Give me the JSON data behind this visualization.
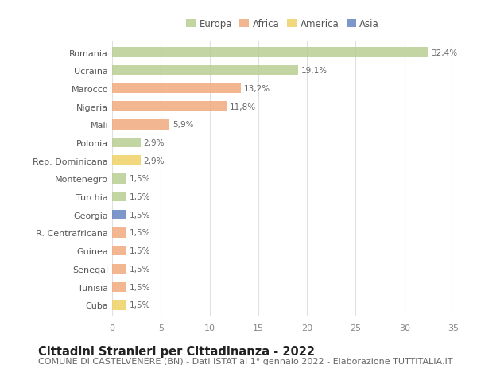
{
  "title": "Cittadini Stranieri per Cittadinanza - 2022",
  "subtitle": "COMUNE DI CASTELVENERE (BN) - Dati ISTAT al 1° gennaio 2022 - Elaborazione TUTTITALIA.IT",
  "countries": [
    "Romania",
    "Ucraina",
    "Marocco",
    "Nigeria",
    "Mali",
    "Polonia",
    "Rep. Dominicana",
    "Montenegro",
    "Turchia",
    "Georgia",
    "R. Centrafricana",
    "Guinea",
    "Senegal",
    "Tunisia",
    "Cuba"
  ],
  "values": [
    32.4,
    19.1,
    13.2,
    11.8,
    5.9,
    2.9,
    2.9,
    1.5,
    1.5,
    1.5,
    1.5,
    1.5,
    1.5,
    1.5,
    1.5
  ],
  "labels": [
    "32,4%",
    "19,1%",
    "13,2%",
    "11,8%",
    "5,9%",
    "2,9%",
    "2,9%",
    "1,5%",
    "1,5%",
    "1,5%",
    "1,5%",
    "1,5%",
    "1,5%",
    "1,5%",
    "1,5%"
  ],
  "continents": [
    "Europa",
    "Europa",
    "Africa",
    "Africa",
    "Africa",
    "Europa",
    "America",
    "Europa",
    "Europa",
    "Asia",
    "Africa",
    "Africa",
    "Africa",
    "Africa",
    "America"
  ],
  "colors": {
    "Europa": "#b5cc8e",
    "Africa": "#f0a878",
    "America": "#f0d060",
    "Asia": "#6080c0"
  },
  "legend_labels": [
    "Europa",
    "Africa",
    "America",
    "Asia"
  ],
  "legend_colors": [
    "#b5cc8e",
    "#f0a878",
    "#f0d060",
    "#6080c0"
  ],
  "xlim": [
    0,
    35
  ],
  "xticks": [
    0,
    5,
    10,
    15,
    20,
    25,
    30,
    35
  ],
  "background_color": "#ffffff",
  "grid_color": "#e0e0e0",
  "bar_height": 0.55,
  "title_fontsize": 10.5,
  "subtitle_fontsize": 8,
  "label_fontsize": 7.5,
  "tick_fontsize": 8,
  "legend_fontsize": 8.5
}
